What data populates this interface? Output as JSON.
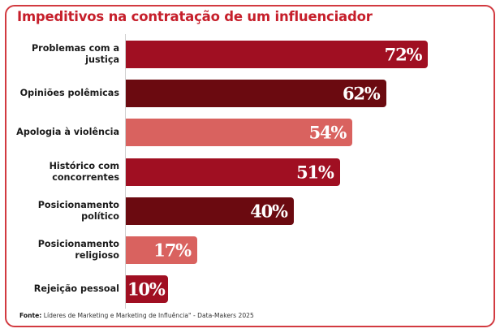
{
  "chart_data": {
    "type": "bar",
    "orientation": "horizontal",
    "title": "Impeditivos na contratação de um influenciador",
    "xlabel": "",
    "ylabel": "",
    "grid": false,
    "legend": "none",
    "categories": [
      "Problemas com a\njustiça",
      "Opiniões polêmicas",
      "Apologia à violência",
      "Histórico com\nconcorrentes",
      "Posicionamento\npolítico",
      "Posicionamento\nreligioso",
      "Rejeição pessoal"
    ],
    "values": [
      72,
      62,
      54,
      51,
      40,
      17,
      10
    ],
    "value_labels": [
      "72%",
      "62%",
      "54%",
      "51%",
      "40%",
      "17%",
      "10%"
    ],
    "bar_colors": [
      "#a00f22",
      "#6b0a10",
      "#d9625f",
      "#a00f22",
      "#6b0a10",
      "#d9625f",
      "#a00f22"
    ],
    "unit": "%"
  },
  "footer": {
    "source_label": "Fonte:",
    "source_text": " Líderes de Marketing e Marketing de Influência\" - Data-Makers 2025"
  },
  "colors": {
    "title": "#c61f2b",
    "border": "#d23a40"
  }
}
